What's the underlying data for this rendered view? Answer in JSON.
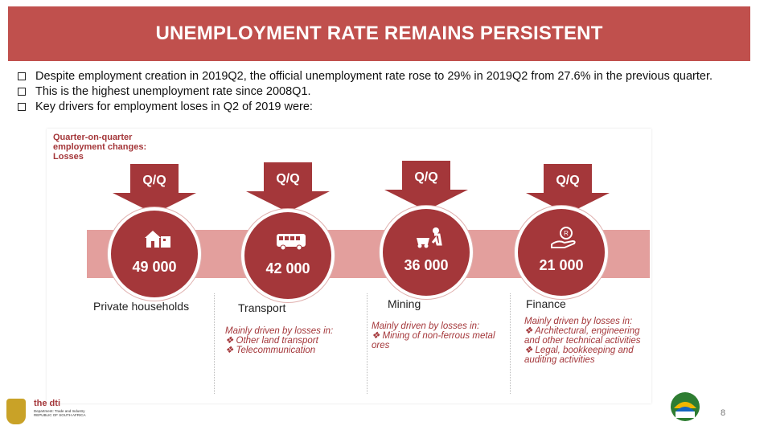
{
  "slide": {
    "title": "UNEMPLOYMENT RATE REMAINS PERSISTENT",
    "page_number": "8"
  },
  "bullets": [
    "Despite employment creation in 2019Q2, the official unemployment rate rose to 29% in 2019Q2 from 27.6% in the previous quarter.",
    "This is the highest unemployment rate since 2008Q1.",
    "Key drivers for employment loses in Q2 of 2019 were:"
  ],
  "infographic": {
    "header_lines": [
      "Quarter-on-quarter",
      "employment changes:",
      "Losses"
    ],
    "arrow_label": "Q/Q",
    "sectors": [
      {
        "value": "49 000",
        "name": "Private households",
        "icon": "house-icon",
        "detail_heading": "",
        "details": []
      },
      {
        "value": "42 000",
        "name": "Transport",
        "icon": "bus-icon",
        "detail_heading": "Mainly driven by losses in:",
        "details": [
          "Other land transport",
          "Telecommunication"
        ]
      },
      {
        "value": "36 000",
        "name": "Mining",
        "icon": "miner-icon",
        "detail_heading": "Mainly driven by losses in:",
        "details": [
          "Mining of non-ferrous metal ores"
        ]
      },
      {
        "value": "21 000",
        "name": "Finance",
        "icon": "money-hand-icon",
        "detail_heading": "Mainly driven by losses in:",
        "details": [
          "Architectural, engineering and other technical activities",
          "Legal, bookkeeping and auditing activities"
        ]
      }
    ]
  },
  "logo": {
    "brand": "the dti",
    "subtitle": "Department: Trade and Industry REPUBLIC OF SOUTH AFRICA"
  },
  "colors": {
    "title_bg": "#c0504d",
    "accent": "#a4373a",
    "band": "#e39f9d"
  }
}
